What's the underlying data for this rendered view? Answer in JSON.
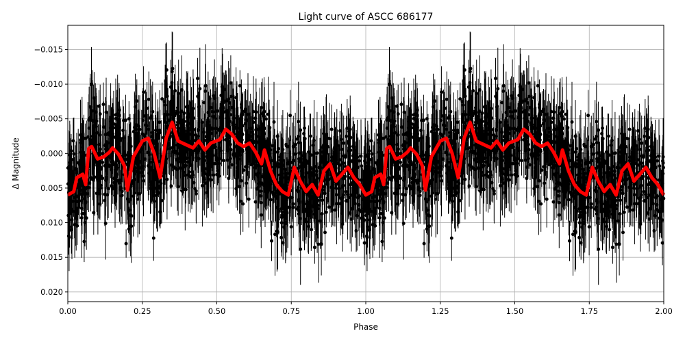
{
  "chart_data": {
    "type": "scatter",
    "title": "Light curve of ASCC 686177",
    "xlabel": "Phase",
    "ylabel": "Δ Magnitude",
    "xlim": [
      0.0,
      2.0
    ],
    "ylim": [
      0.0214,
      -0.0185
    ],
    "y_inverted": true,
    "grid": true,
    "legend": null,
    "xticks": [
      "0.00",
      "0.25",
      "0.50",
      "0.75",
      "1.00",
      "1.25",
      "1.50",
      "1.75",
      "2.00"
    ],
    "yticks": [
      "−0.015",
      "−0.010",
      "−0.005",
      "0.000",
      "0.005",
      "0.010",
      "0.015",
      "0.020"
    ],
    "series": [
      {
        "name": "observations",
        "kind": "errorbar-points",
        "color": "#000000",
        "description": "Dense phase-folded photometric points with vertical error bars spanning roughly -0.018 to 0.021 mag, plotted twice (phase 0-1 and 1-2)"
      },
      {
        "name": "binned mean",
        "kind": "line",
        "color": "#ff0000",
        "phase": [
          0.0,
          0.02,
          0.03,
          0.05,
          0.06,
          0.07,
          0.08,
          0.1,
          0.12,
          0.14,
          0.15,
          0.17,
          0.19,
          0.2,
          0.22,
          0.25,
          0.27,
          0.29,
          0.31,
          0.33,
          0.35,
          0.37,
          0.4,
          0.42,
          0.44,
          0.46,
          0.48,
          0.51,
          0.53,
          0.55,
          0.57,
          0.59,
          0.61,
          0.63,
          0.65,
          0.66,
          0.68,
          0.7,
          0.72,
          0.74,
          0.76,
          0.78,
          0.8,
          0.82,
          0.84,
          0.86,
          0.88,
          0.9,
          0.92,
          0.94,
          0.96,
          0.98,
          1.0
        ],
        "values": [
          0.006,
          0.0055,
          0.0035,
          0.003,
          0.0045,
          -0.0007,
          -0.001,
          0.0008,
          0.0005,
          -0.0002,
          -0.0008,
          0.0001,
          0.0018,
          0.0053,
          0.0005,
          -0.0018,
          -0.0022,
          0.0,
          0.0035,
          -0.0022,
          -0.0045,
          -0.0018,
          -0.0012,
          -0.0008,
          -0.0018,
          -0.0005,
          -0.0015,
          -0.002,
          -0.0035,
          -0.0028,
          -0.0015,
          -0.001,
          -0.0015,
          -0.0002,
          0.0015,
          -0.0005,
          0.0025,
          0.0045,
          0.0055,
          0.006,
          0.002,
          0.004,
          0.0055,
          0.0045,
          0.006,
          0.0025,
          0.0015,
          0.004,
          0.003,
          0.002,
          0.0035,
          0.0045,
          0.006
        ]
      }
    ]
  }
}
